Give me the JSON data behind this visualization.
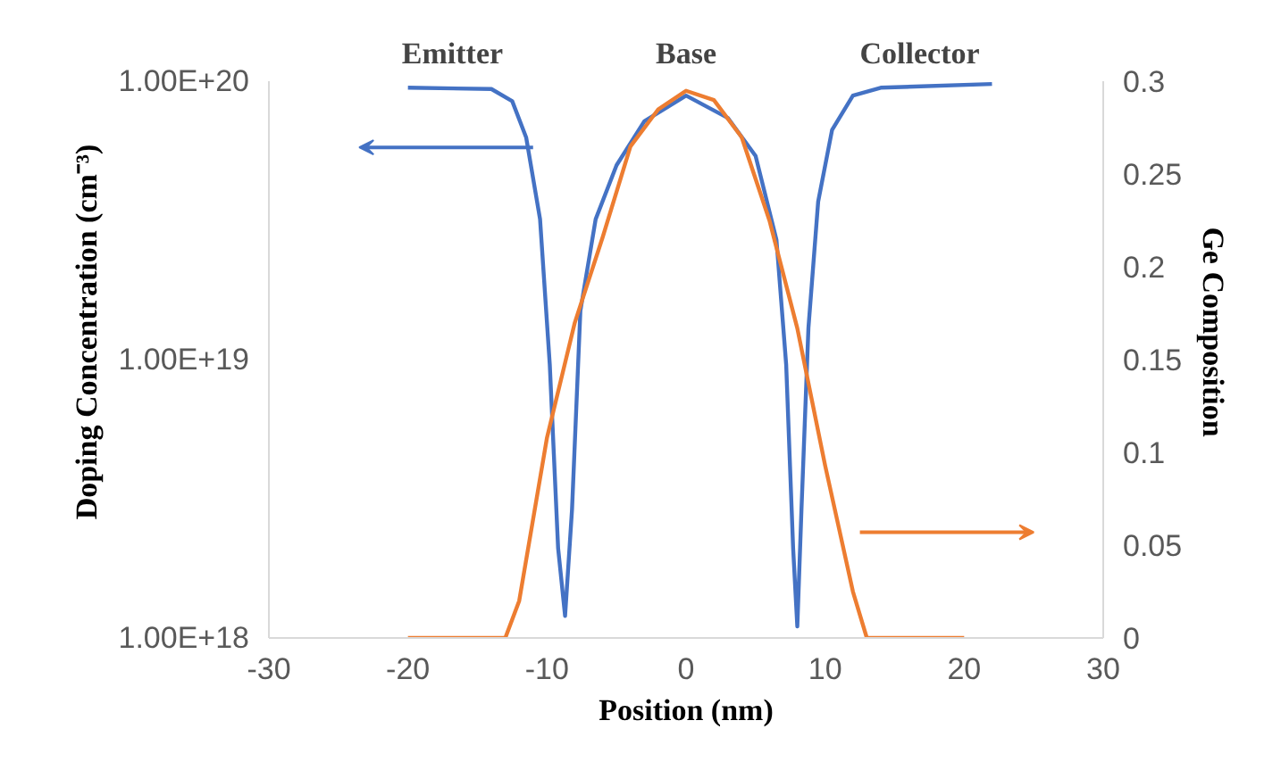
{
  "chart_data": {
    "type": "line",
    "xlabel": "Position (nm)",
    "ylabel": "Doping Concentration (cm⁻³)",
    "y2label": "Ge Composition",
    "xlim": [
      -30,
      30
    ],
    "xticks": [
      -30,
      -20,
      -10,
      0,
      10,
      20,
      30
    ],
    "ylim": [
      1e+18,
      1e+20
    ],
    "yticks": [
      {
        "value": 1e+18,
        "label": "1.00E+18"
      },
      {
        "value": 1e+19,
        "label": "1.00E+19"
      },
      {
        "value": 1e+20,
        "label": "1.00E+20"
      }
    ],
    "y2lim": [
      0,
      0.3
    ],
    "y2ticks": [
      0,
      0.05,
      0.1,
      0.15,
      0.2,
      0.25,
      0.3
    ],
    "log": "y",
    "grid": false,
    "line_style": "solid",
    "marker": "none",
    "annotations": [
      "Emitter",
      "Base",
      "Collector"
    ],
    "series": [
      {
        "color": "#4472c4",
        "x": [
          -20,
          -14,
          -12.5,
          -11.5,
          -10.5,
          -9.8,
          -9.2,
          -8.7,
          -8.2,
          -7.6,
          -6.5,
          -5,
          -3,
          0,
          3,
          5,
          6.5,
          7.2,
          7.7,
          8.0,
          8.3,
          8.8,
          9.5,
          10.5,
          12,
          14,
          22
        ],
        "values": [
          9.5e+19,
          9.4e+19,
          8.5e+19,
          6.3e+19,
          3.2e+19,
          9.6e+18,
          2.1e+18,
          1.2e+18,
          2.9e+18,
          1.5e+19,
          3.2e+19,
          5e+19,
          7.2e+19,
          8.9e+19,
          7.4e+19,
          5.4e+19,
          2.7e+19,
          9.6e+18,
          2.1e+18,
          1.1e+18,
          2.9e+18,
          1.3e+19,
          3.7e+19,
          6.7e+19,
          8.9e+19,
          9.5e+19,
          9.8e+19
        ]
      },
      {
        "color": "#ed7d31",
        "axis": "y2",
        "x": [
          -20,
          -13,
          -12,
          -10,
          -8,
          -6,
          -4,
          -2,
          0,
          2,
          4,
          6,
          8,
          10,
          12,
          13,
          20
        ],
        "values": [
          0,
          0,
          0.02,
          0.108,
          0.17,
          0.216,
          0.265,
          0.285,
          0.295,
          0.29,
          0.27,
          0.225,
          0.167,
          0.093,
          0.025,
          0,
          0
        ]
      }
    ]
  }
}
